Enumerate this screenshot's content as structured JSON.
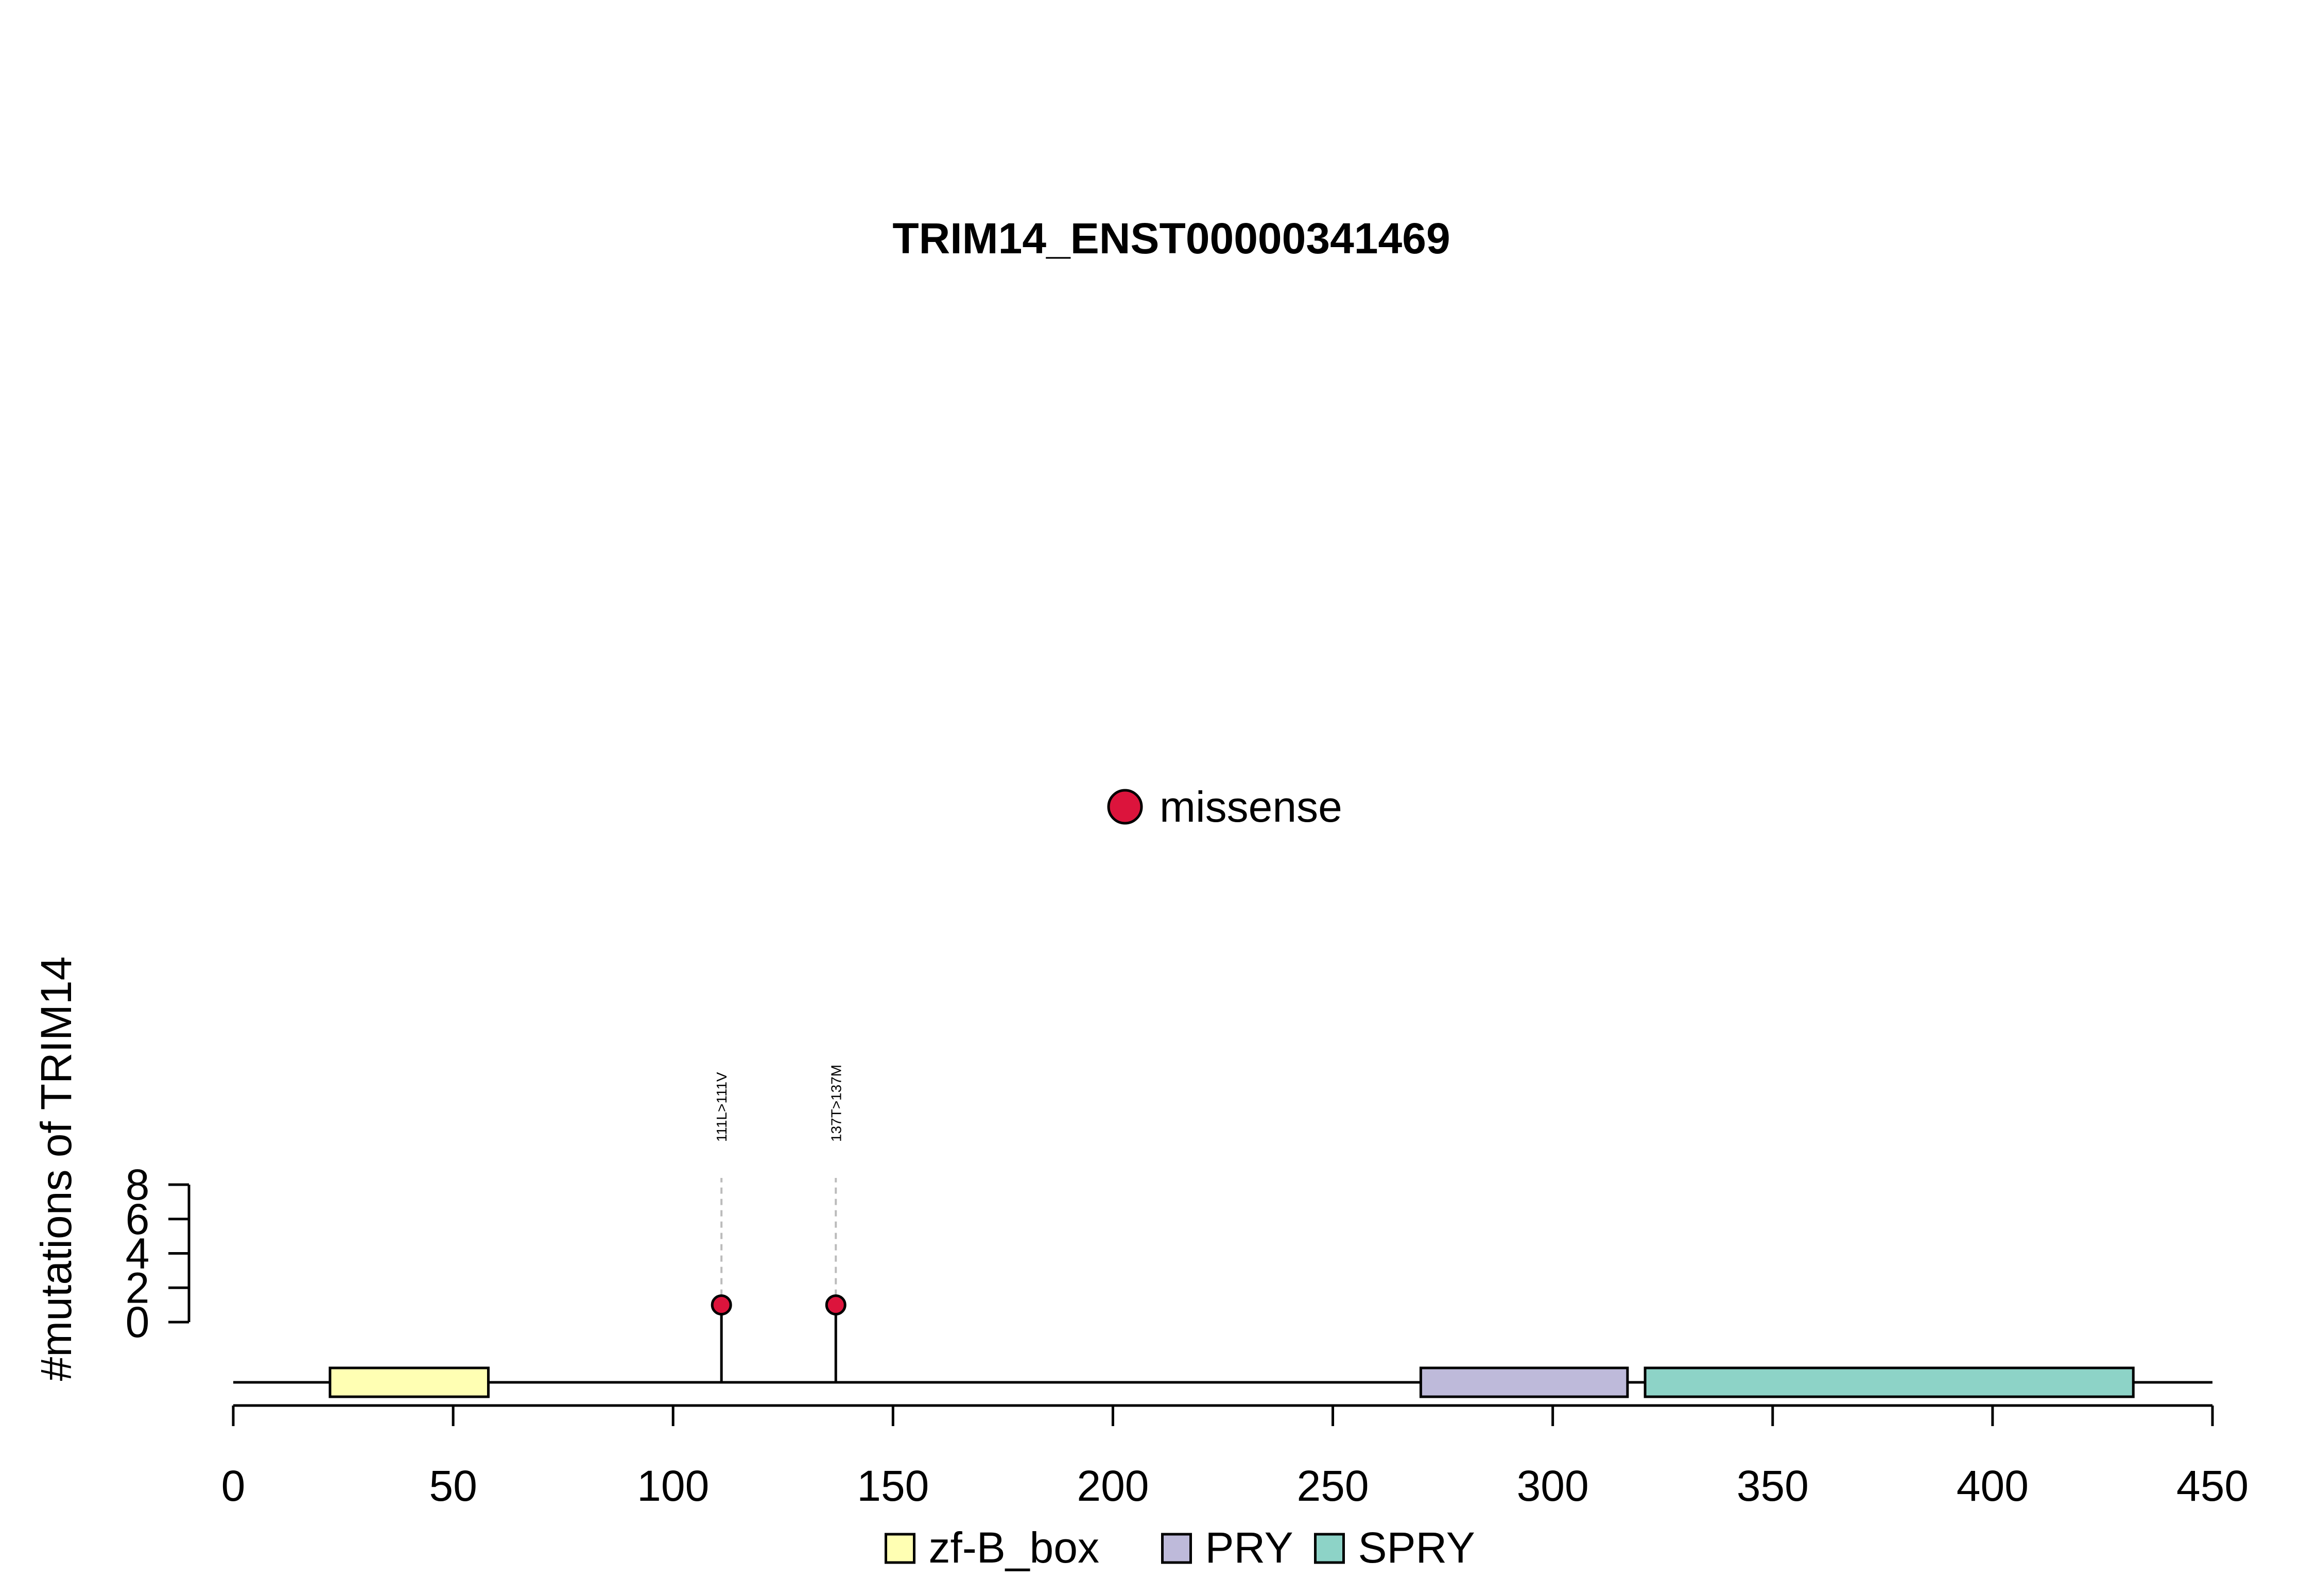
{
  "chart_data": {
    "type": "lollipop",
    "title": "TRIM14_ENST00000341469",
    "ylabel": "#mutations of TRIM14",
    "xlabel": "",
    "xlim": [
      0,
      450
    ],
    "x_ticks": [
      0,
      50,
      100,
      150,
      200,
      250,
      300,
      350,
      400,
      450
    ],
    "x_tick_labels": [
      "0",
      "50",
      "100",
      "150",
      "200",
      "250",
      "300",
      "350",
      "400",
      "450"
    ],
    "ylim": [
      0,
      8
    ],
    "y_ticks": [
      0,
      2,
      4,
      6,
      8
    ],
    "y_tick_labels": [
      "0",
      "2",
      "4",
      "6",
      "8"
    ],
    "protein_length": 450,
    "domains": [
      {
        "name": "zf-B_box",
        "start": 22,
        "end": 58,
        "color": "#FFFFB3"
      },
      {
        "name": "PRY",
        "start": 270,
        "end": 317,
        "color": "#BEBADA"
      },
      {
        "name": "SPRY",
        "start": 321,
        "end": 432,
        "color": "#8DD3C7"
      }
    ],
    "mutations": [
      {
        "position": 111,
        "count": 1,
        "type": "missense",
        "label": "111L>111V"
      },
      {
        "position": 137,
        "count": 1,
        "type": "missense",
        "label": "137T>137M"
      }
    ],
    "mutation_legend": [
      {
        "label": "missense",
        "color": "#DC143C"
      }
    ],
    "domain_legend": [
      {
        "label": "zf-B_box",
        "color": "#FFFFB3"
      },
      {
        "label": "PRY",
        "color": "#BEBADA"
      },
      {
        "label": "SPRY",
        "color": "#8DD3C7"
      }
    ]
  }
}
